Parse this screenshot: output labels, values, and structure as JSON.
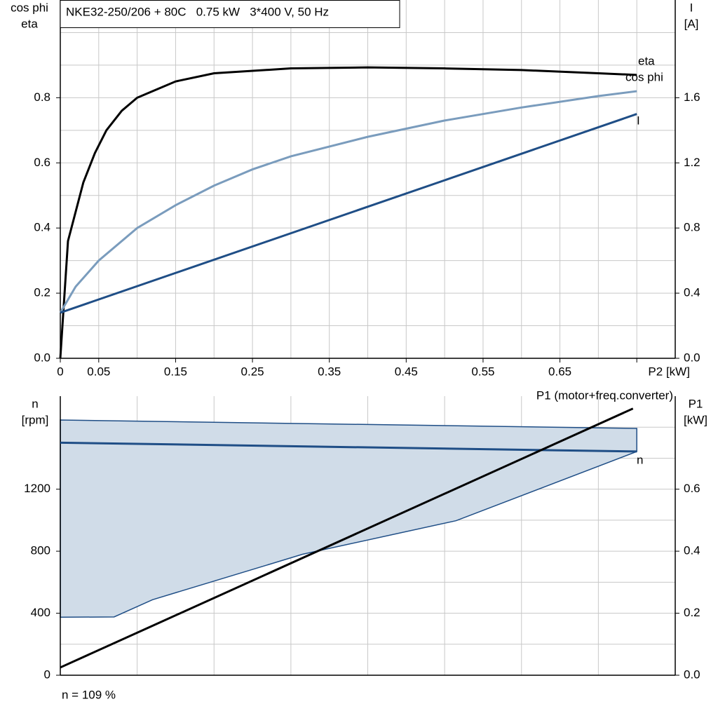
{
  "chart_data": [
    {
      "type": "line",
      "title": "NKE32-250/206 + 80C   0.75 kW   3*400 V, 50 Hz",
      "ylabel": [
        "cos phi",
        "eta"
      ],
      "y2label": [
        "I",
        "[A]"
      ],
      "xlim": [
        0,
        0.8
      ],
      "ylim": [
        0,
        1.1
      ],
      "y2lim": [
        0,
        2.2
      ],
      "xticks": [
        0,
        0.05,
        0.15,
        0.25,
        0.35,
        0.45,
        0.55,
        0.65,
        {
          "value": 0.75,
          "label": "P2 [kW]"
        }
      ],
      "yticks": [
        {
          "value": 0,
          "label": "0.0"
        },
        0.2,
        0.4,
        0.6,
        0.8
      ],
      "y2ticks": [
        {
          "value": 0,
          "label": "0.0"
        },
        0.4,
        0.8,
        1.2,
        1.6
      ],
      "xgrid": [
        0.05,
        0.1,
        0.15,
        0.2,
        0.25,
        0.3,
        0.35,
        0.4,
        0.45,
        0.5,
        0.55,
        0.6,
        0.65,
        0.7,
        0.75
      ],
      "ygrid": [
        0.1,
        0.2,
        0.3,
        0.4,
        0.5,
        0.6,
        0.7,
        0.8,
        0.9,
        1.0
      ],
      "series": [
        {
          "name": "eta",
          "color": "#000000",
          "x": [
            0,
            0.01,
            0.03,
            0.045,
            0.06,
            0.08,
            0.1,
            0.15,
            0.2,
            0.3,
            0.4,
            0.5,
            0.6,
            0.7,
            0.75
          ],
          "values": [
            0,
            0.36,
            0.54,
            0.63,
            0.7,
            0.76,
            0.8,
            0.85,
            0.875,
            0.89,
            0.893,
            0.89,
            0.885,
            0.875,
            0.87
          ]
        },
        {
          "name": "cos phi",
          "color": "#7a9cbd",
          "x": [
            0,
            0.02,
            0.05,
            0.1,
            0.15,
            0.2,
            0.25,
            0.3,
            0.4,
            0.5,
            0.6,
            0.7,
            0.75
          ],
          "values": [
            0.14,
            0.22,
            0.3,
            0.4,
            0.47,
            0.53,
            0.58,
            0.62,
            0.68,
            0.73,
            0.77,
            0.805,
            0.82
          ]
        },
        {
          "name": "I",
          "color": "#1f4e86",
          "axis": "y2",
          "x": [
            0,
            0.75
          ],
          "values": [
            0.28,
            1.5
          ]
        }
      ]
    },
    {
      "type": "line",
      "ylabel": [
        "n",
        "[rpm]"
      ],
      "y2label": [
        "P1",
        "[kW]"
      ],
      "annotation": "n = 109 %",
      "xlim": [
        0,
        0.8
      ],
      "ylim": [
        0,
        1800
      ],
      "y2lim": [
        0,
        0.9
      ],
      "yticks": [
        0,
        400,
        800,
        1200
      ],
      "y2ticks": [
        {
          "value": 0,
          "label": "0.0"
        },
        0.2,
        0.4,
        0.6
      ],
      "xgrid": [
        0.1,
        0.2,
        0.3,
        0.4,
        0.5,
        0.6,
        0.7
      ],
      "ygrid": [
        200,
        400,
        600,
        800,
        1000,
        1200,
        1400,
        1600
      ],
      "band": {
        "color": "#d0dce8",
        "line_color": "#1f4e86",
        "upper": {
          "x": [
            0,
            0.75
          ],
          "values": [
            1646,
            1592
          ]
        },
        "lower": {
          "x": [
            0,
            0.07,
            0.12,
            0.315,
            0.515,
            0.75
          ],
          "values": [
            374,
            376,
            487,
            780,
            997,
            1443
          ]
        }
      },
      "series": [
        {
          "name": "n",
          "color": "#1f4e86",
          "x": [
            0,
            0.75
          ],
          "values": [
            1500,
            1443
          ]
        },
        {
          "name": "P1 (motor+freq.converter)",
          "color": "#000000",
          "axis": "y2",
          "x": [
            0,
            0.745
          ],
          "values": [
            0.025,
            0.86
          ]
        }
      ]
    }
  ]
}
